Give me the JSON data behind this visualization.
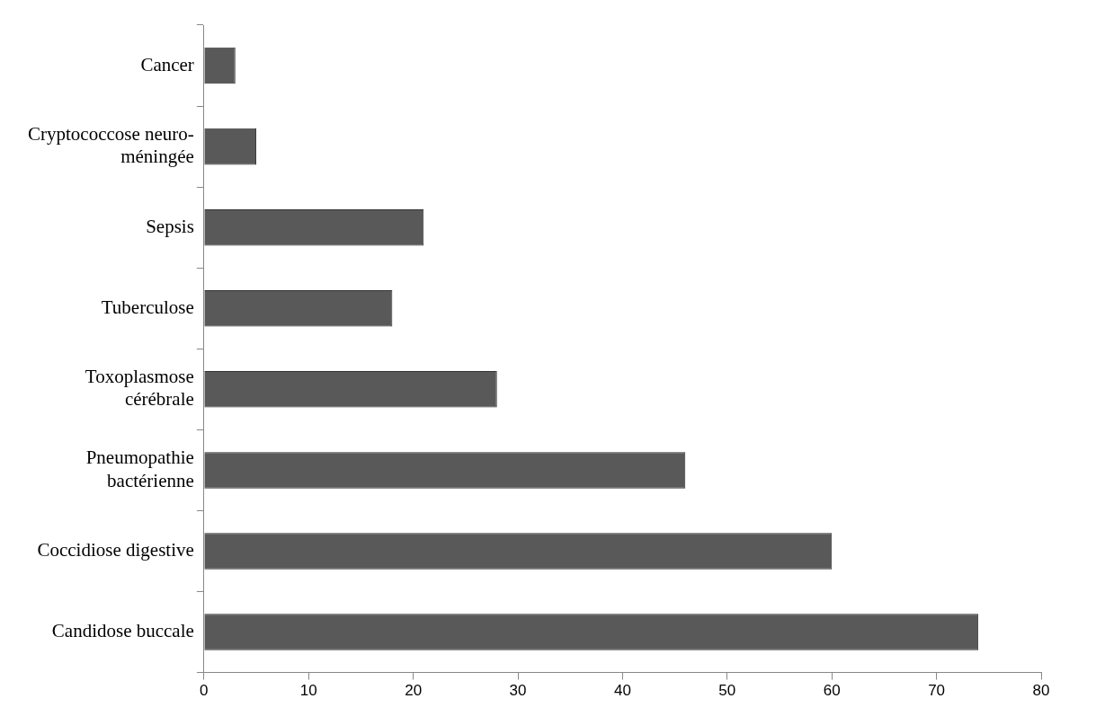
{
  "chart_data": {
    "type": "bar",
    "orientation": "horizontal",
    "categories": [
      "Cancer",
      "Cryptococcose neuro-méningée",
      "Sepsis",
      "Tuberculose",
      "Toxoplasmose cérébrale",
      "Pneumopathie bactérienne",
      "Coccidiose digestive",
      "Candidose buccale"
    ],
    "values": [
      3,
      5,
      21,
      18,
      28,
      46,
      60,
      74
    ],
    "color": "#595959",
    "xlim": [
      0,
      80
    ],
    "xticks": [
      0,
      10,
      20,
      30,
      40,
      50,
      60,
      70,
      80
    ],
    "grid": false,
    "legend": false
  }
}
